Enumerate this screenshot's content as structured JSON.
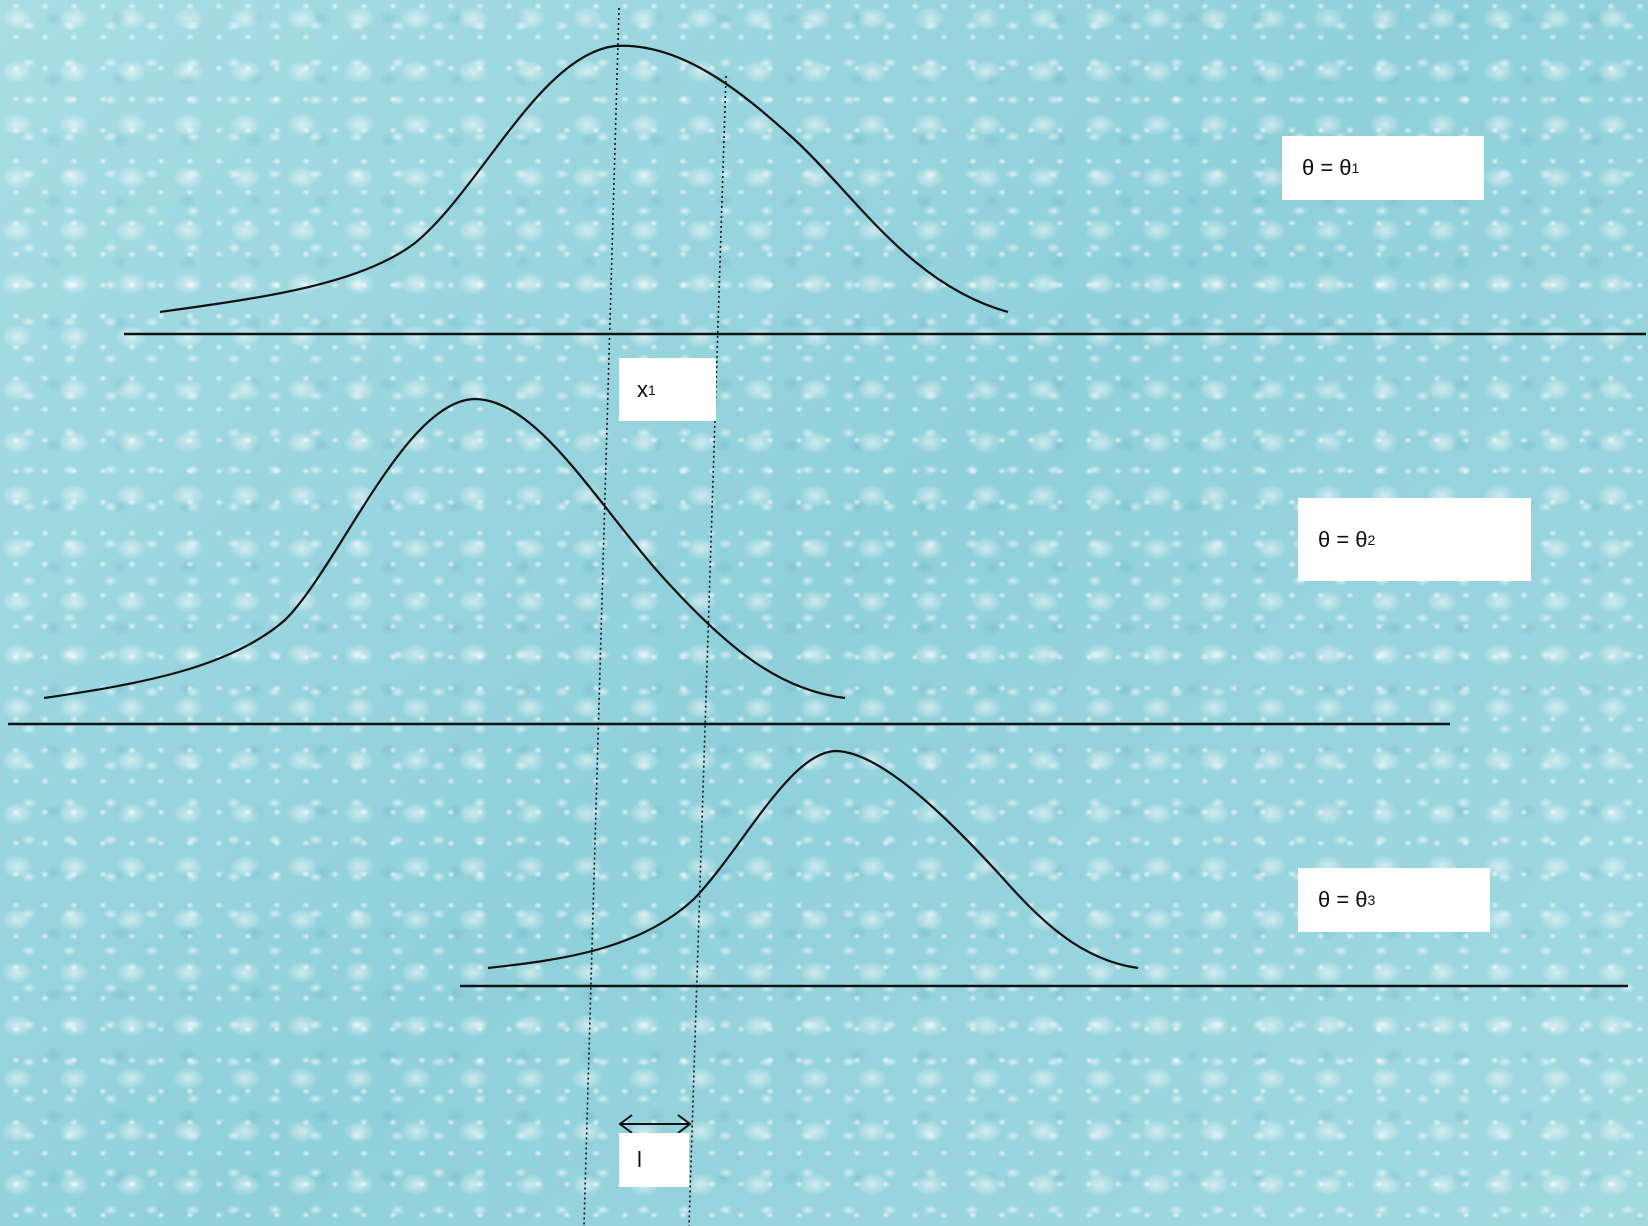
{
  "labels": {
    "theta1": {
      "main": "θ = θ",
      "sub": "1"
    },
    "theta2": {
      "main": "θ = θ",
      "sub": "2"
    },
    "theta3": {
      "main": "θ = θ",
      "sub": "3"
    },
    "x1": {
      "main": "x",
      "sub": "1"
    },
    "interval": {
      "main": "l"
    }
  }
}
